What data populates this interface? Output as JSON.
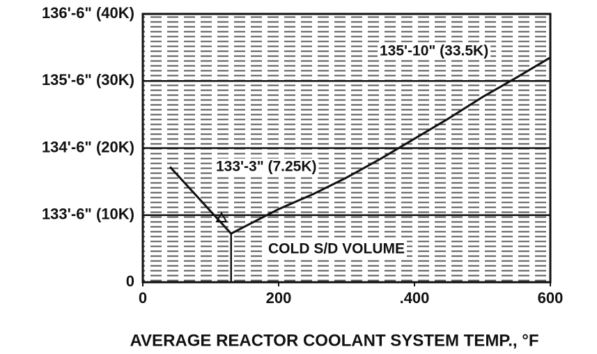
{
  "chart_data": {
    "type": "line",
    "xlabel": "AVERAGE REACTOR COOLANT SYSTEM TEMP., °F",
    "x": [
      40,
      130,
      200,
      250,
      300,
      350,
      400,
      450,
      500,
      550,
      600
    ],
    "series": [
      {
        "color": "#111111",
        "values": [
          17.2,
          7.25,
          10.9,
          13.1,
          15.6,
          18.4,
          21.4,
          24.4,
          27.6,
          30.5,
          33.5
        ]
      }
    ],
    "xlim": [
      0,
      600
    ],
    "xticks": [
      0,
      200,
      {
        "value": 400,
        "label": ".400"
      },
      600
    ],
    "ylim": [
      0,
      40
    ],
    "yticks": [
      0,
      {
        "value": 10,
        "label": "133'-6\" (10K)"
      },
      {
        "value": 20,
        "label": "134'-6\" (20K)"
      },
      {
        "value": 30,
        "label": "135'-6\" (30K)"
      },
      {
        "value": 40,
        "label": "136'-6\" (40K)"
      }
    ],
    "grid": true,
    "annotations": [
      "135'-10\" (33.5K)",
      "133'-3\" (7.25K)",
      "COLD S/D VOLUME"
    ]
  }
}
